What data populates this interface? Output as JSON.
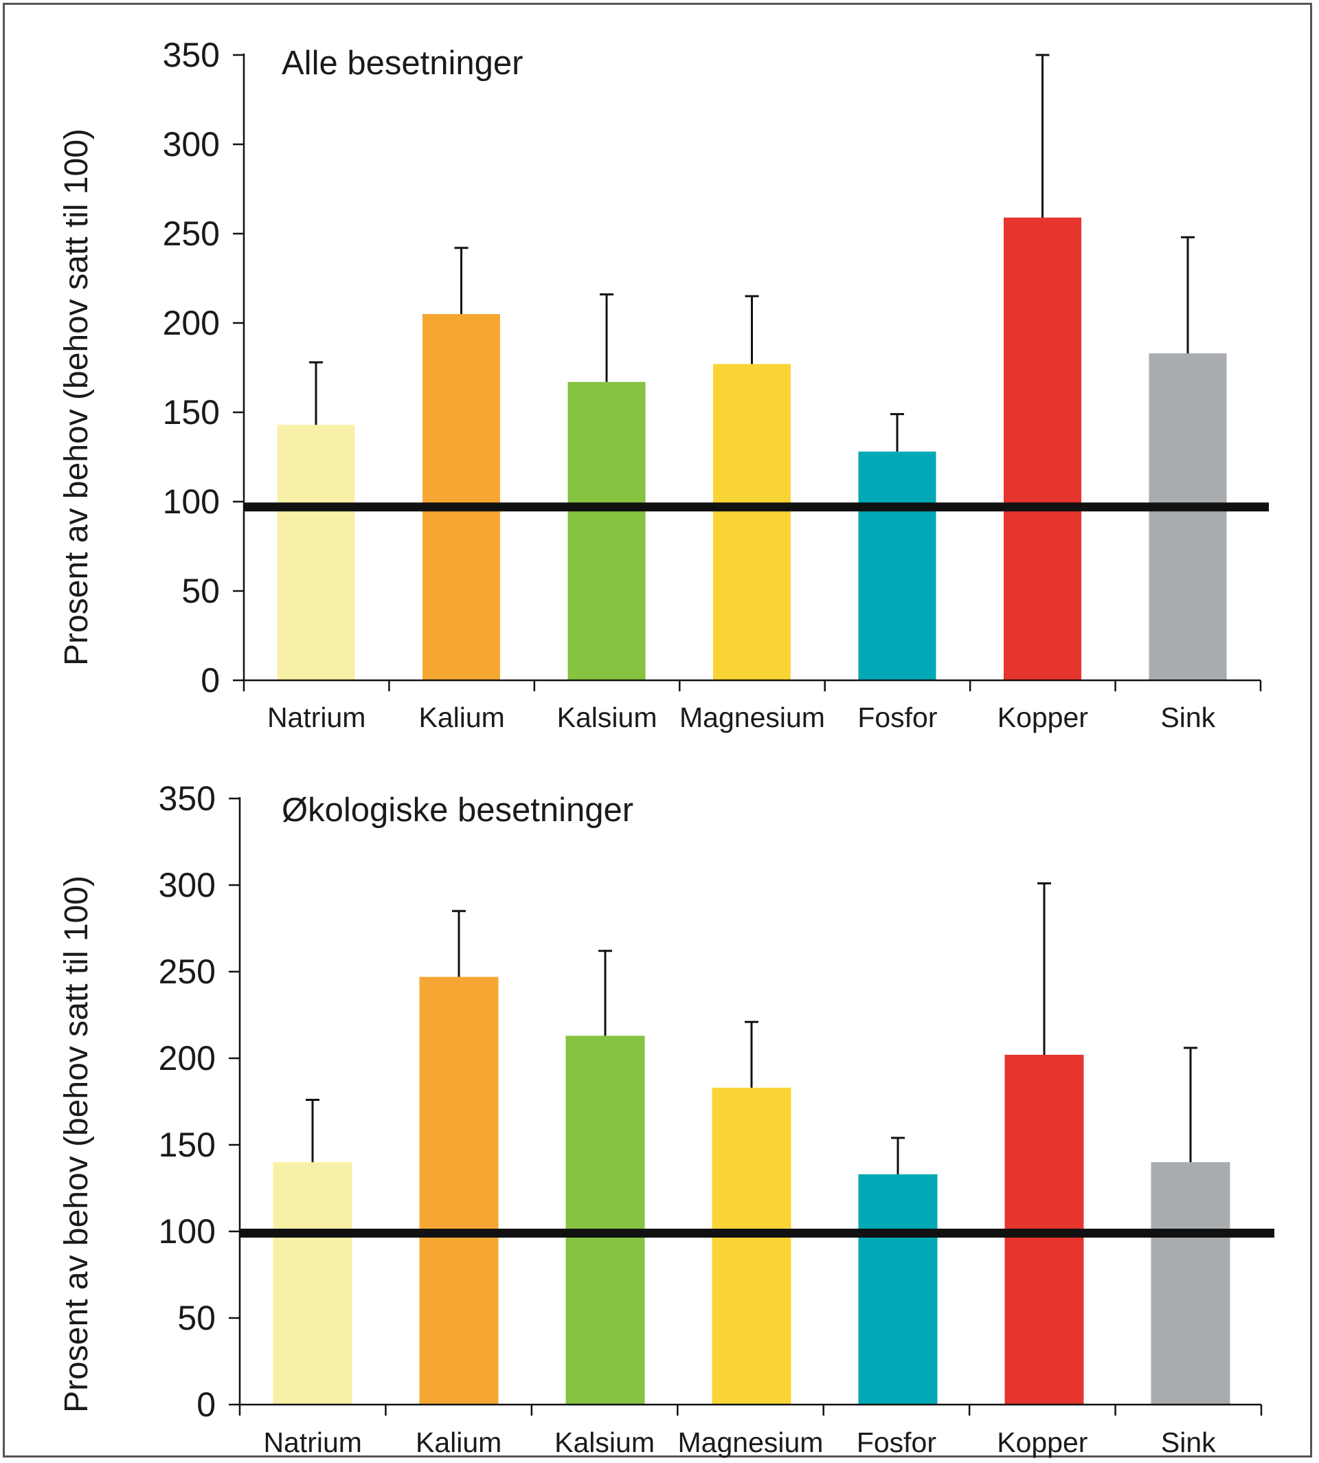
{
  "chart_data": [
    {
      "type": "bar",
      "title": "Alle besetninger",
      "ylabel": "Prosent av behov (behov satt til 100)",
      "xlabel": "",
      "categories": [
        "Natrium",
        "Kalium",
        "Kalsium",
        "Magnesium",
        "Fosfor",
        "Kopper",
        "Sink"
      ],
      "values": [
        143,
        205,
        167,
        177,
        128,
        259,
        183
      ],
      "error_upper": [
        178,
        242,
        216,
        215,
        149,
        350,
        248
      ],
      "colors": [
        "#f8f0a6",
        "#f6a733",
        "#86c341",
        "#f9d435",
        "#00a9b5",
        "#e5352c",
        "#a9acaf"
      ],
      "ylim": [
        0,
        350
      ],
      "yticks": [
        0,
        50,
        100,
        150,
        200,
        250,
        300,
        350
      ],
      "reference_line": 97,
      "grid": false
    },
    {
      "type": "bar",
      "title": "Økologiske besetninger",
      "ylabel": "Prosent av behov (behov satt til 100)",
      "xlabel": "",
      "categories": [
        "Natrium",
        "Kalium",
        "Kalsium",
        "Magnesium",
        "Fosfor",
        "Kopper",
        "Sink"
      ],
      "values": [
        140,
        247,
        213,
        183,
        133,
        202,
        140
      ],
      "error_upper": [
        176,
        285,
        262,
        221,
        154,
        301,
        206
      ],
      "colors": [
        "#f8f0a6",
        "#f6a733",
        "#86c341",
        "#f9d435",
        "#00a9b5",
        "#e5352c",
        "#a9acaf"
      ],
      "ylim": [
        0,
        350
      ],
      "yticks": [
        0,
        50,
        100,
        150,
        200,
        250,
        300,
        350
      ],
      "reference_line": 99,
      "grid": false
    }
  ]
}
